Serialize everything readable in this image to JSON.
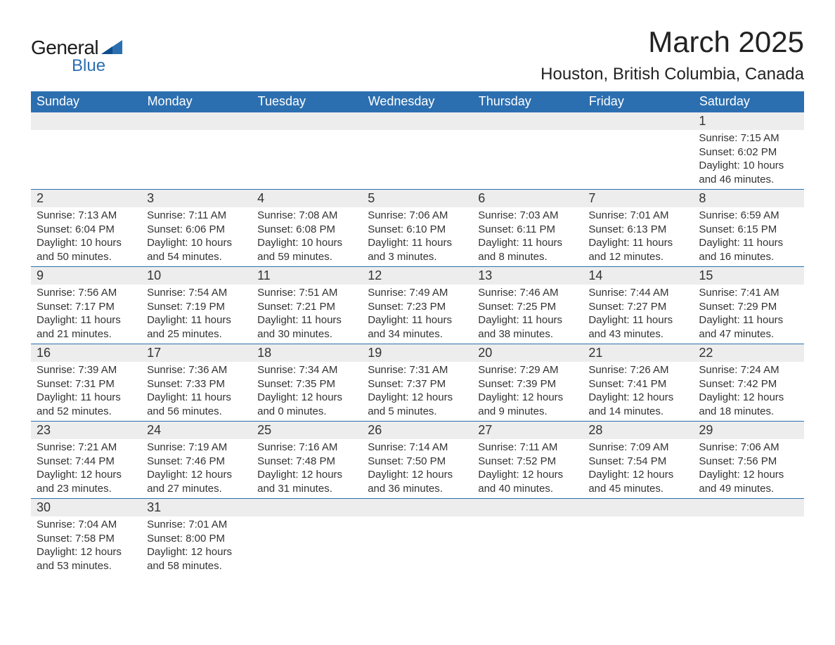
{
  "logo": {
    "word1": "General",
    "word2": "Blue",
    "text_color": "#1a1a1a",
    "accent_color": "#2c6fb0"
  },
  "title": {
    "month_year": "March 2025",
    "location": "Houston, British Columbia, Canada",
    "title_fontsize": 42,
    "location_fontsize": 24
  },
  "calendar": {
    "type": "table",
    "header_bg": "#2c6fb0",
    "header_text_color": "#ffffff",
    "daynum_bg": "#ededed",
    "border_color": "#2c6fb0",
    "cell_text_color": "#333333",
    "columns": [
      "Sunday",
      "Monday",
      "Tuesday",
      "Wednesday",
      "Thursday",
      "Friday",
      "Saturday"
    ],
    "weeks": [
      {
        "nums": [
          "",
          "",
          "",
          "",
          "",
          "",
          "1"
        ],
        "sun": [
          "",
          "",
          "",
          "",
          "",
          "",
          "Sunrise: 7:15 AM"
        ],
        "set": [
          "",
          "",
          "",
          "",
          "",
          "",
          "Sunset: 6:02 PM"
        ],
        "dl1": [
          "",
          "",
          "",
          "",
          "",
          "",
          "Daylight: 10 hours"
        ],
        "dl2": [
          "",
          "",
          "",
          "",
          "",
          "",
          "and 46 minutes."
        ]
      },
      {
        "nums": [
          "2",
          "3",
          "4",
          "5",
          "6",
          "7",
          "8"
        ],
        "sun": [
          "Sunrise: 7:13 AM",
          "Sunrise: 7:11 AM",
          "Sunrise: 7:08 AM",
          "Sunrise: 7:06 AM",
          "Sunrise: 7:03 AM",
          "Sunrise: 7:01 AM",
          "Sunrise: 6:59 AM"
        ],
        "set": [
          "Sunset: 6:04 PM",
          "Sunset: 6:06 PM",
          "Sunset: 6:08 PM",
          "Sunset: 6:10 PM",
          "Sunset: 6:11 PM",
          "Sunset: 6:13 PM",
          "Sunset: 6:15 PM"
        ],
        "dl1": [
          "Daylight: 10 hours",
          "Daylight: 10 hours",
          "Daylight: 10 hours",
          "Daylight: 11 hours",
          "Daylight: 11 hours",
          "Daylight: 11 hours",
          "Daylight: 11 hours"
        ],
        "dl2": [
          "and 50 minutes.",
          "and 54 minutes.",
          "and 59 minutes.",
          "and 3 minutes.",
          "and 8 minutes.",
          "and 12 minutes.",
          "and 16 minutes."
        ]
      },
      {
        "nums": [
          "9",
          "10",
          "11",
          "12",
          "13",
          "14",
          "15"
        ],
        "sun": [
          "Sunrise: 7:56 AM",
          "Sunrise: 7:54 AM",
          "Sunrise: 7:51 AM",
          "Sunrise: 7:49 AM",
          "Sunrise: 7:46 AM",
          "Sunrise: 7:44 AM",
          "Sunrise: 7:41 AM"
        ],
        "set": [
          "Sunset: 7:17 PM",
          "Sunset: 7:19 PM",
          "Sunset: 7:21 PM",
          "Sunset: 7:23 PM",
          "Sunset: 7:25 PM",
          "Sunset: 7:27 PM",
          "Sunset: 7:29 PM"
        ],
        "dl1": [
          "Daylight: 11 hours",
          "Daylight: 11 hours",
          "Daylight: 11 hours",
          "Daylight: 11 hours",
          "Daylight: 11 hours",
          "Daylight: 11 hours",
          "Daylight: 11 hours"
        ],
        "dl2": [
          "and 21 minutes.",
          "and 25 minutes.",
          "and 30 minutes.",
          "and 34 minutes.",
          "and 38 minutes.",
          "and 43 minutes.",
          "and 47 minutes."
        ]
      },
      {
        "nums": [
          "16",
          "17",
          "18",
          "19",
          "20",
          "21",
          "22"
        ],
        "sun": [
          "Sunrise: 7:39 AM",
          "Sunrise: 7:36 AM",
          "Sunrise: 7:34 AM",
          "Sunrise: 7:31 AM",
          "Sunrise: 7:29 AM",
          "Sunrise: 7:26 AM",
          "Sunrise: 7:24 AM"
        ],
        "set": [
          "Sunset: 7:31 PM",
          "Sunset: 7:33 PM",
          "Sunset: 7:35 PM",
          "Sunset: 7:37 PM",
          "Sunset: 7:39 PM",
          "Sunset: 7:41 PM",
          "Sunset: 7:42 PM"
        ],
        "dl1": [
          "Daylight: 11 hours",
          "Daylight: 11 hours",
          "Daylight: 12 hours",
          "Daylight: 12 hours",
          "Daylight: 12 hours",
          "Daylight: 12 hours",
          "Daylight: 12 hours"
        ],
        "dl2": [
          "and 52 minutes.",
          "and 56 minutes.",
          "and 0 minutes.",
          "and 5 minutes.",
          "and 9 minutes.",
          "and 14 minutes.",
          "and 18 minutes."
        ]
      },
      {
        "nums": [
          "23",
          "24",
          "25",
          "26",
          "27",
          "28",
          "29"
        ],
        "sun": [
          "Sunrise: 7:21 AM",
          "Sunrise: 7:19 AM",
          "Sunrise: 7:16 AM",
          "Sunrise: 7:14 AM",
          "Sunrise: 7:11 AM",
          "Sunrise: 7:09 AM",
          "Sunrise: 7:06 AM"
        ],
        "set": [
          "Sunset: 7:44 PM",
          "Sunset: 7:46 PM",
          "Sunset: 7:48 PM",
          "Sunset: 7:50 PM",
          "Sunset: 7:52 PM",
          "Sunset: 7:54 PM",
          "Sunset: 7:56 PM"
        ],
        "dl1": [
          "Daylight: 12 hours",
          "Daylight: 12 hours",
          "Daylight: 12 hours",
          "Daylight: 12 hours",
          "Daylight: 12 hours",
          "Daylight: 12 hours",
          "Daylight: 12 hours"
        ],
        "dl2": [
          "and 23 minutes.",
          "and 27 minutes.",
          "and 31 minutes.",
          "and 36 minutes.",
          "and 40 minutes.",
          "and 45 minutes.",
          "and 49 minutes."
        ]
      },
      {
        "nums": [
          "30",
          "31",
          "",
          "",
          "",
          "",
          ""
        ],
        "sun": [
          "Sunrise: 7:04 AM",
          "Sunrise: 7:01 AM",
          "",
          "",
          "",
          "",
          ""
        ],
        "set": [
          "Sunset: 7:58 PM",
          "Sunset: 8:00 PM",
          "",
          "",
          "",
          "",
          ""
        ],
        "dl1": [
          "Daylight: 12 hours",
          "Daylight: 12 hours",
          "",
          "",
          "",
          "",
          ""
        ],
        "dl2": [
          "and 53 minutes.",
          "and 58 minutes.",
          "",
          "",
          "",
          "",
          ""
        ]
      }
    ]
  }
}
